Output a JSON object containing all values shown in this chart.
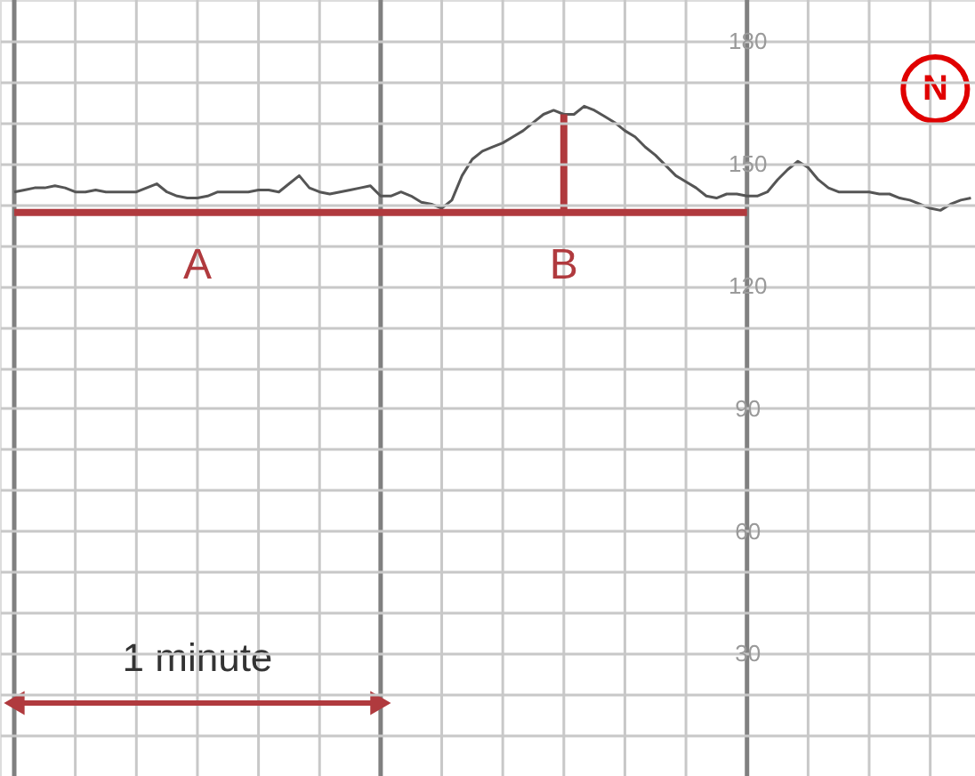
{
  "chart_data": {
    "type": "line",
    "categories": [
      null,
      null,
      null,
      null,
      null,
      null,
      null,
      null,
      null,
      null,
      null,
      null,
      null,
      null,
      null,
      null,
      null,
      null,
      null,
      null,
      null,
      null,
      null,
      null,
      null,
      null,
      null,
      null,
      null,
      null,
      null,
      null,
      null,
      null,
      null,
      null,
      null,
      null,
      null,
      null,
      null,
      null,
      null,
      null,
      null,
      null,
      null,
      null,
      null,
      null,
      null,
      null,
      null,
      null,
      null,
      null,
      null,
      null,
      null,
      null,
      null,
      null,
      null,
      null,
      null,
      null,
      null,
      null,
      null,
      null,
      null,
      null,
      null,
      null,
      null,
      null,
      null,
      null,
      null,
      null,
      null,
      null,
      null,
      null,
      null,
      null,
      null,
      null,
      null,
      null,
      null,
      null,
      null,
      null,
      null
    ],
    "series": [
      {
        "color": "#555555",
        "values": [
          143,
          143.5,
          144,
          144,
          144.5,
          144,
          143,
          143,
          143.5,
          143,
          143,
          143,
          143,
          144,
          145,
          143,
          142,
          141.5,
          141.5,
          142,
          143,
          143,
          143,
          143,
          143.5,
          143.5,
          143,
          145,
          147,
          144,
          143,
          142.5,
          143,
          143.5,
          144,
          144.5,
          142,
          142,
          143,
          142,
          140.5,
          140,
          139,
          141,
          147,
          151,
          153,
          154,
          155,
          156.5,
          158,
          160,
          162,
          163,
          162,
          162,
          164,
          163,
          161.5,
          160,
          158,
          156.5,
          154,
          152,
          149.5,
          147,
          145.5,
          144,
          142,
          141.5,
          142.5,
          142.5,
          142,
          142,
          143,
          146,
          148.5,
          150.5,
          149,
          146,
          144,
          143,
          143,
          143,
          143,
          142.5,
          142.5,
          141.5,
          141,
          140,
          139,
          138.5,
          140,
          141,
          141.5
        ]
      },
      {
        "color": "#b03a3e",
        "values": [
          138,
          138,
          138,
          138,
          138,
          138,
          138,
          138,
          138,
          138,
          138,
          138,
          138,
          138,
          138,
          138,
          138,
          138,
          138,
          138,
          138,
          138,
          138,
          138,
          138,
          138,
          138,
          138,
          138,
          138,
          138,
          138,
          138,
          138,
          138,
          138,
          138,
          138,
          138,
          138,
          138,
          138,
          138,
          138,
          138,
          138,
          138,
          138,
          138,
          138,
          138,
          138,
          138,
          138,
          138,
          138,
          138,
          138,
          138,
          138,
          138,
          138,
          138,
          138,
          138,
          138,
          138,
          138,
          138,
          138,
          138,
          138,
          138,
          null,
          null,
          null,
          null,
          null,
          null,
          null,
          null,
          null,
          null,
          null,
          null,
          null,
          null,
          null,
          null,
          null,
          null,
          null,
          null,
          null,
          null
        ]
      }
    ],
    "ylim": [
      0,
      190
    ],
    "yticks": [
      {
        "value": 10,
        "label": null
      },
      {
        "value": 20,
        "label": null
      },
      30,
      {
        "value": 40,
        "label": null
      },
      {
        "value": 50,
        "label": null
      },
      60,
      {
        "value": 70,
        "label": null
      },
      {
        "value": 80,
        "label": null
      },
      90,
      {
        "value": 100,
        "label": null
      },
      {
        "value": 110,
        "label": null
      },
      120,
      {
        "value": 130,
        "label": null
      },
      {
        "value": 140,
        "label": null
      },
      150,
      {
        "value": 160,
        "label": null
      },
      {
        "value": 170,
        "label": null
      },
      180
    ],
    "tick_labels": "y",
    "grid": true,
    "annotations": [
      "A",
      "B",
      "1 minute",
      "N"
    ]
  }
}
